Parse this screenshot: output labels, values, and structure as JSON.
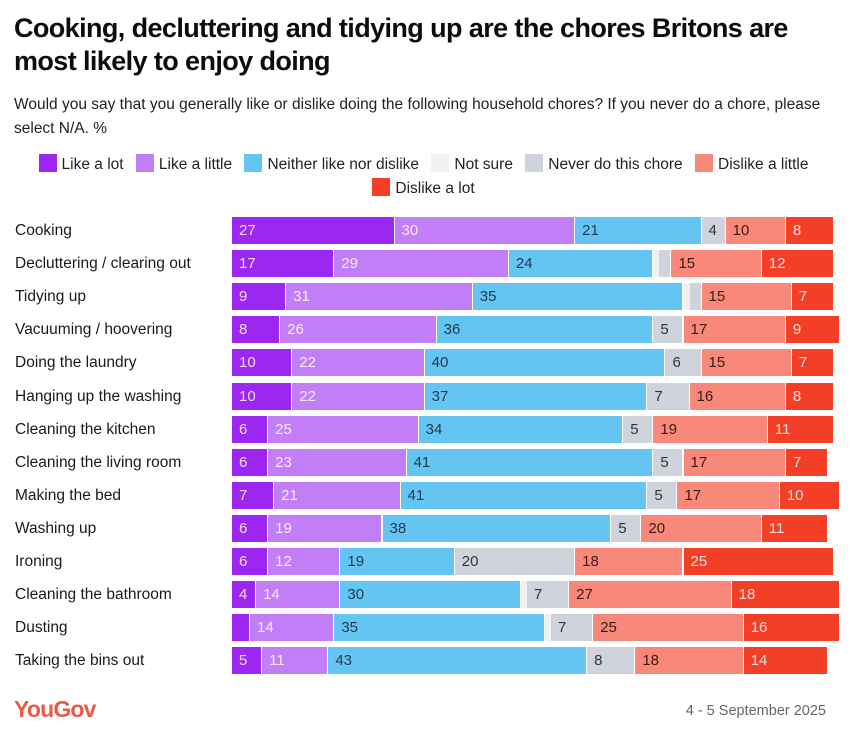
{
  "chart_data": {
    "type": "bar",
    "orientation": "horizontal",
    "stacked": true,
    "percent_stacked": true,
    "title": "Cooking, decluttering and tidying up are the chores Britons are most likely to enjoy doing",
    "subtitle": "Would you say that you generally like or dislike doing the following household chores? If you never do a chore, please select N/A. %",
    "xlabel": "",
    "ylabel": "",
    "xlim": [
      0,
      100
    ],
    "grid": false,
    "legend_position": "top-center",
    "categories": [
      "Cooking",
      "Decluttering / clearing out",
      "Tidying up",
      "Vacuuming / hoovering",
      "Doing the laundry",
      "Hanging up the washing",
      "Cleaning the kitchen",
      "Cleaning the living room",
      "Making the bed",
      "Washing up",
      "Ironing",
      "Cleaning the bathroom",
      "Dusting",
      "Taking the bins out"
    ],
    "series": [
      {
        "name": "Like a lot",
        "color": "#9b27f0",
        "label_color": "#f1dcff",
        "values": [
          27,
          17,
          9,
          8,
          10,
          10,
          6,
          6,
          7,
          6,
          6,
          4,
          3,
          5
        ],
        "labels": [
          "27",
          "17",
          "9",
          "8",
          "10",
          "10",
          "6",
          "6",
          "7",
          "6",
          "6",
          "4",
          "",
          "5"
        ]
      },
      {
        "name": "Like a little",
        "color": "#c27ef7",
        "label_color": "#f6ebff",
        "values": [
          30,
          29,
          31,
          26,
          22,
          22,
          25,
          23,
          21,
          19,
          12,
          14,
          14,
          11
        ],
        "labels": [
          "30",
          "29",
          "31",
          "26",
          "22",
          "22",
          "25",
          "23",
          "21",
          "19",
          "12",
          "14",
          "14",
          "11"
        ]
      },
      {
        "name": "Neither like nor dislike",
        "color": "#64c4f2",
        "label_color": "#1f3a4d",
        "values": [
          21,
          24,
          35,
          36,
          40,
          37,
          34,
          41,
          41,
          38,
          19,
          30,
          35,
          43
        ],
        "labels": [
          "21",
          "24",
          "35",
          "36",
          "40",
          "37",
          "34",
          "41",
          "41",
          "38",
          "19",
          "30",
          "35",
          "43"
        ]
      },
      {
        "name": "Not sure",
        "color": "#f1f1f1",
        "label_color": "#333333",
        "values": [
          0,
          1,
          1,
          0,
          0,
          0,
          0,
          0,
          0,
          0,
          0,
          1,
          1,
          0
        ],
        "labels": [
          "",
          "",
          "",
          "",
          "",
          "",
          "",
          "",
          "",
          "",
          "",
          "",
          "",
          ""
        ]
      },
      {
        "name": "Never do this chore",
        "color": "#ced3dc",
        "label_color": "#333333",
        "values": [
          4,
          2,
          2,
          5,
          6,
          7,
          5,
          5,
          5,
          5,
          20,
          7,
          7,
          8
        ],
        "labels": [
          "4",
          "",
          "",
          "5",
          "6",
          "7",
          "5",
          "5",
          "5",
          "5",
          "20",
          "7",
          "7",
          "8"
        ]
      },
      {
        "name": "Dislike a little",
        "color": "#f8887a",
        "label_color": "#3a1a16",
        "values": [
          10,
          15,
          15,
          17,
          15,
          16,
          19,
          17,
          17,
          20,
          18,
          27,
          25,
          18
        ],
        "labels": [
          "10",
          "15",
          "15",
          "17",
          "15",
          "16",
          "19",
          "17",
          "17",
          "20",
          "18",
          "27",
          "25",
          "18"
        ]
      },
      {
        "name": "Dislike a lot",
        "color": "#f43f27",
        "label_color": "#fde0dc",
        "values": [
          8,
          12,
          7,
          9,
          7,
          8,
          11,
          7,
          10,
          11,
          25,
          18,
          16,
          14
        ],
        "labels": [
          "8",
          "12",
          "7",
          "9",
          "7",
          "8",
          "11",
          "7",
          "10",
          "11",
          "25",
          "18",
          "16",
          "14"
        ]
      }
    ]
  },
  "legend": {
    "items": [
      {
        "label": "Like a lot",
        "color": "#9b27f0"
      },
      {
        "label": "Like a little",
        "color": "#c27ef7"
      },
      {
        "label": "Neither like nor dislike",
        "color": "#64c4f2"
      },
      {
        "label": "Not sure",
        "color": "#f1f1f1"
      },
      {
        "label": "Never do this chore",
        "color": "#ced3dc"
      },
      {
        "label": "Dislike a little",
        "color": "#f8887a"
      },
      {
        "label": "Dislike a lot",
        "color": "#f43f27"
      }
    ]
  },
  "footer": {
    "brand": "YouGov",
    "date": "4 - 5 September 2025"
  }
}
